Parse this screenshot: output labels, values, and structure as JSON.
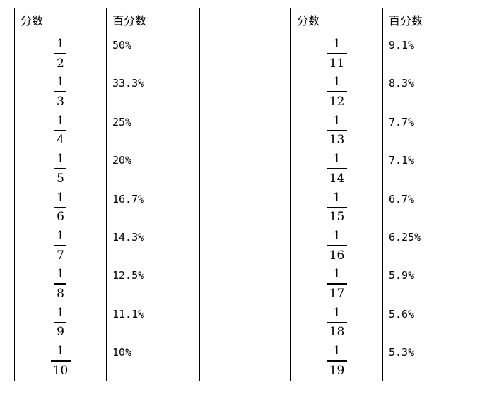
{
  "tables": [
    {
      "header": {
        "fraction": "分数",
        "percent": "百分数"
      },
      "rows": [
        {
          "numerator": "1",
          "denominator": "2",
          "percent": "50%"
        },
        {
          "numerator": "1",
          "denominator": "3",
          "percent": "33.3%"
        },
        {
          "numerator": "1",
          "denominator": "4",
          "percent": "25%"
        },
        {
          "numerator": "1",
          "denominator": "5",
          "percent": "20%"
        },
        {
          "numerator": "1",
          "denominator": "6",
          "percent": "16.7%"
        },
        {
          "numerator": "1",
          "denominator": "7",
          "percent": "14.3%"
        },
        {
          "numerator": "1",
          "denominator": "8",
          "percent": "12.5%"
        },
        {
          "numerator": "1",
          "denominator": "9",
          "percent": "11.1%"
        },
        {
          "numerator": "1",
          "denominator": "10",
          "percent": "10%"
        }
      ]
    },
    {
      "header": {
        "fraction": "分数",
        "percent": "百分数"
      },
      "rows": [
        {
          "numerator": "1",
          "denominator": "11",
          "percent": "9.1%"
        },
        {
          "numerator": "1",
          "denominator": "12",
          "percent": "8.3%"
        },
        {
          "numerator": "1",
          "denominator": "13",
          "percent": "7.7%"
        },
        {
          "numerator": "1",
          "denominator": "14",
          "percent": "7.1%"
        },
        {
          "numerator": "1",
          "denominator": "15",
          "percent": "6.7%"
        },
        {
          "numerator": "1",
          "denominator": "16",
          "percent": "6.25%"
        },
        {
          "numerator": "1",
          "denominator": "17",
          "percent": "5.9%"
        },
        {
          "numerator": "1",
          "denominator": "18",
          "percent": "5.6%"
        },
        {
          "numerator": "1",
          "denominator": "19",
          "percent": "5.3%"
        }
      ]
    }
  ]
}
